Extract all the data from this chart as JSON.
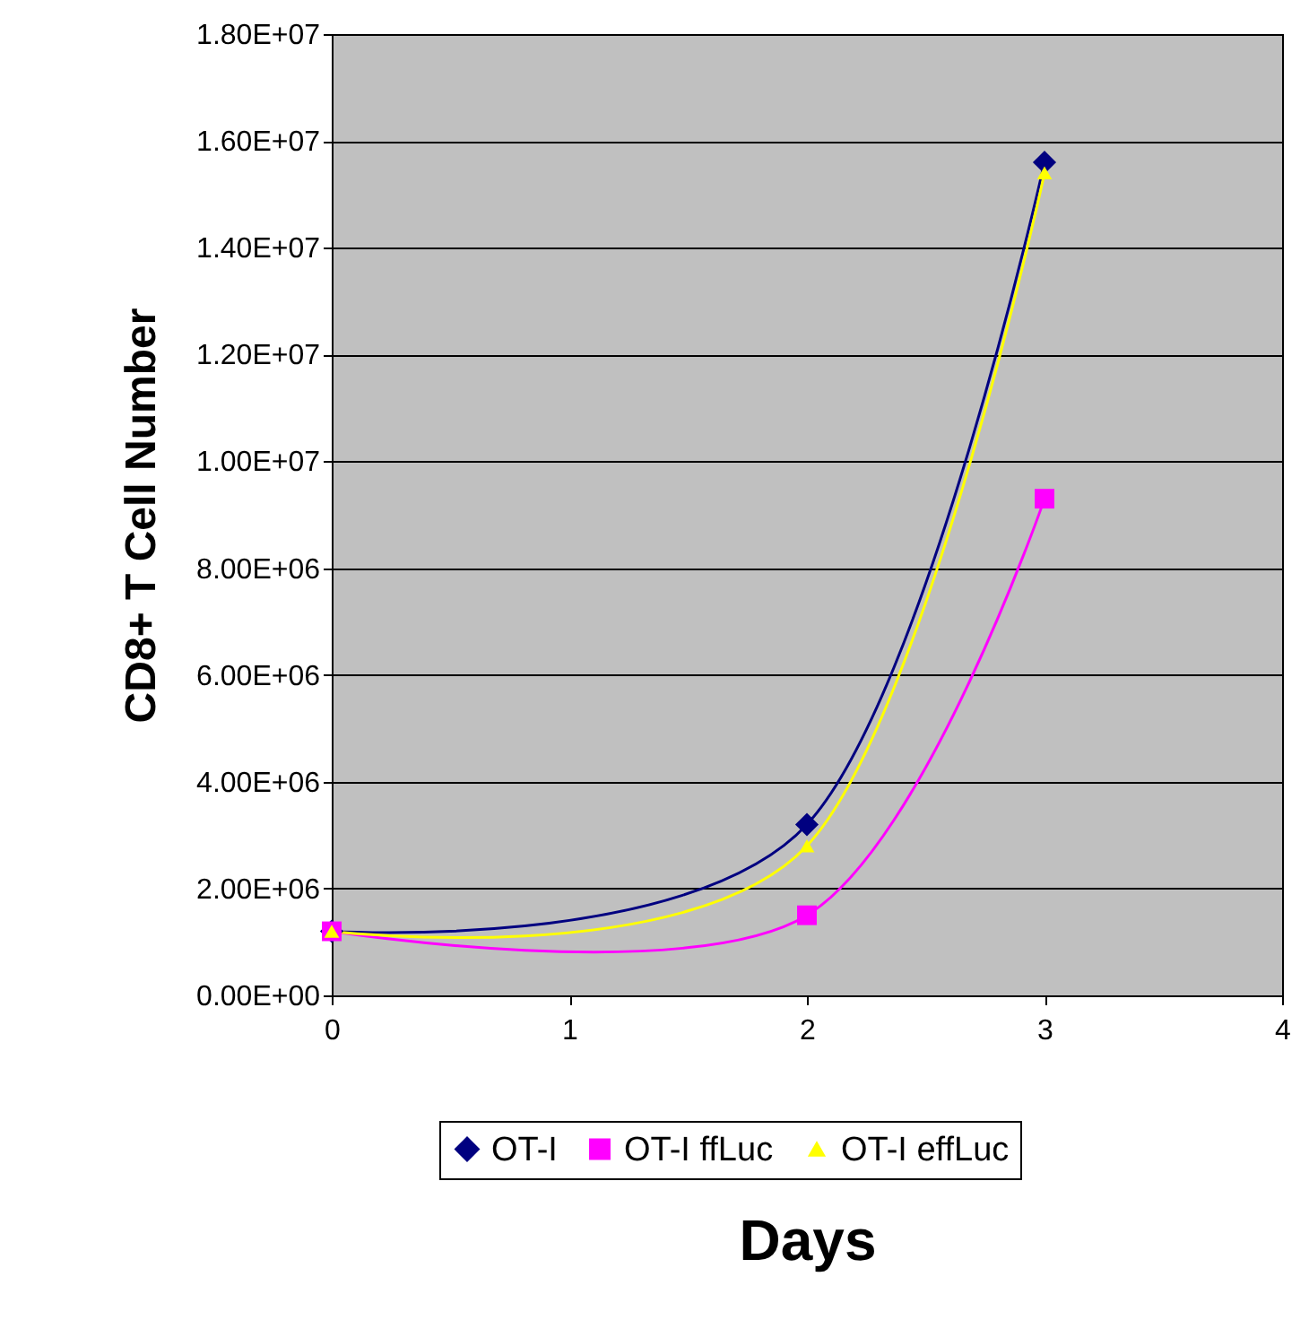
{
  "chart_data": {
    "type": "line",
    "xlabel": "Days",
    "ylabel": "CD8+ T Cell Number",
    "x": [
      0,
      2,
      3
    ],
    "series": [
      {
        "name": "OT-I",
        "color": "#000080",
        "marker": "diamond",
        "values": [
          1200000,
          3200000,
          15600000
        ]
      },
      {
        "name": "OT-I ffLuc",
        "color": "#ff00ff",
        "marker": "square",
        "values": [
          1200000,
          1500000,
          9300000
        ]
      },
      {
        "name": "OT-I effLuc",
        "color": "#ffff00",
        "marker": "triangle",
        "values": [
          1200000,
          2800000,
          15400000
        ]
      }
    ],
    "xlim": [
      0,
      4
    ],
    "xticks": [
      0,
      1,
      2,
      3,
      4
    ],
    "ylim": [
      0,
      18000000
    ],
    "yticks": [
      {
        "value": 0,
        "label": "0.00E+00"
      },
      {
        "value": 2000000,
        "label": "2.00E+06"
      },
      {
        "value": 4000000,
        "label": "4.00E+06"
      },
      {
        "value": 6000000,
        "label": "6.00E+06"
      },
      {
        "value": 8000000,
        "label": "8.00E+06"
      },
      {
        "value": 10000000,
        "label": "1.00E+07"
      },
      {
        "value": 12000000,
        "label": "1.20E+07"
      },
      {
        "value": 14000000,
        "label": "1.40E+07"
      },
      {
        "value": 16000000,
        "label": "1.60E+07"
      },
      {
        "value": 18000000,
        "label": "1.80E+07"
      }
    ],
    "grid": "y",
    "legend": "bottom",
    "line_style": "solid"
  }
}
